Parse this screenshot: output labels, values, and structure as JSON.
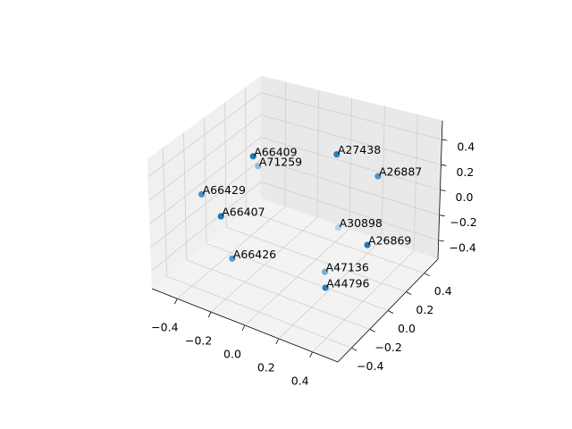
{
  "chart_data": {
    "type": "scatter3d",
    "series": [
      {
        "labels": [
          "A66409",
          "A71259",
          "A27438",
          "A26887",
          "A66429",
          "A66407",
          "A30898",
          "A26869",
          "A66426",
          "A47136",
          "A44796"
        ],
        "x": [
          -0.29,
          -0.34,
          0.01,
          0.25,
          -0.37,
          -0.3,
          0.03,
          0.3,
          -0.28,
          0.18,
          0.2
        ],
        "y": [
          0.05,
          0.18,
          0.39,
          0.41,
          -0.33,
          -0.26,
          0.38,
          0.22,
          -0.19,
          -0.02,
          -0.05
        ],
        "z": [
          0.3,
          0.1,
          0.2,
          0.1,
          0.2,
          0.0,
          -0.4,
          -0.3,
          -0.4,
          -0.4,
          -0.5
        ],
        "colors": [
          "#1f77b4",
          "#8fbbdc",
          "#2a7db8",
          "#4f94c7",
          "#4f94c7",
          "#1f77b4",
          "#b8d4ea",
          "#2479b5",
          "#5a9acb",
          "#7aaed5",
          "#2a7db8"
        ]
      }
    ],
    "xlim": [
      -0.55,
      0.55
    ],
    "ylim": [
      -0.55,
      0.55
    ],
    "zlim": [
      -0.55,
      0.55
    ],
    "xticks": [
      {
        "value": -0.4,
        "label": "−0.4"
      },
      {
        "value": -0.2,
        "label": "−0.2"
      },
      {
        "value": 0,
        "label": "0.0"
      },
      0.2,
      0.4
    ],
    "yticks": [
      {
        "value": -0.4,
        "label": "−0.4"
      },
      {
        "value": -0.2,
        "label": "−0.2"
      },
      {
        "value": 0,
        "label": "0.0"
      },
      0.2,
      0.4
    ],
    "zticks": [
      {
        "value": -0.4,
        "label": "−0.4"
      },
      {
        "value": -0.2,
        "label": "−0.2"
      },
      {
        "value": 0,
        "label": "0.0"
      },
      0.2,
      0.4
    ],
    "grid": true
  }
}
